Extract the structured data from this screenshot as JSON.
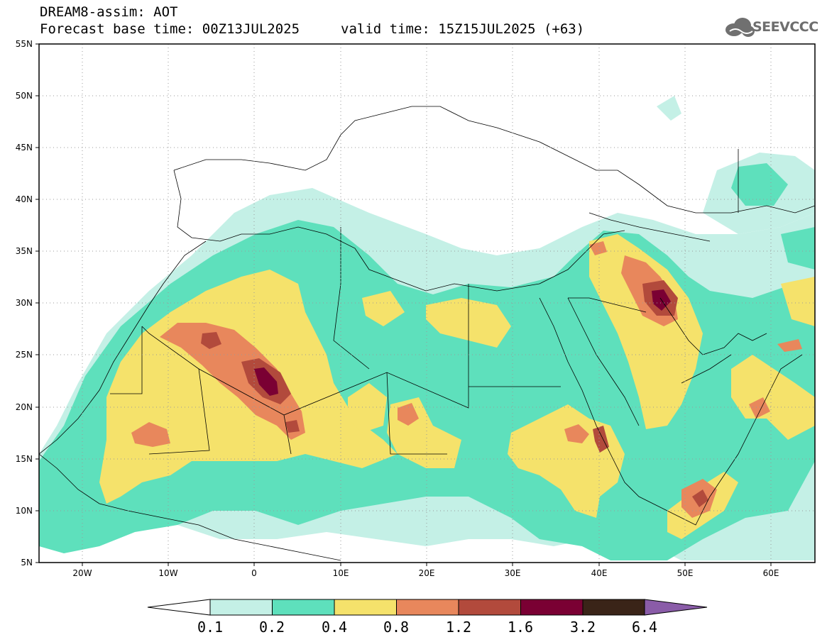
{
  "header": {
    "title": "DREAM8-assim: AOT",
    "base_time": "Forecast base time: 00Z13JUL2025",
    "valid_time": "valid time: 15Z15JUL2025 (+63)"
  },
  "logo": {
    "text": "SEEVCCC",
    "icon": "cloud-icon"
  },
  "map": {
    "variable": "Aerosol Optical Thickness",
    "lon_range": [
      -25,
      65
    ],
    "lat_range": [
      5,
      55
    ],
    "lat_labels": [
      "55N",
      "50N",
      "45N",
      "40N",
      "35N",
      "30N",
      "25N",
      "20N",
      "15N",
      "10N",
      "5N"
    ],
    "lon_labels": [
      "20W",
      "10W",
      "0",
      "10E",
      "20E",
      "30E",
      "40E",
      "50E",
      "60E"
    ],
    "gridlines": "dotted"
  },
  "colorbar": {
    "levels": [
      "0.1",
      "0.2",
      "0.4",
      "0.8",
      "1.2",
      "1.6",
      "3.2",
      "6.4"
    ],
    "colors": [
      "#c4f0e6",
      "#5ee0bc",
      "#f5e26b",
      "#e8875c",
      "#b24a3c",
      "#7a0033",
      "#3a2418",
      "#8a5ca8"
    ],
    "under_color": "#ffffff"
  }
}
